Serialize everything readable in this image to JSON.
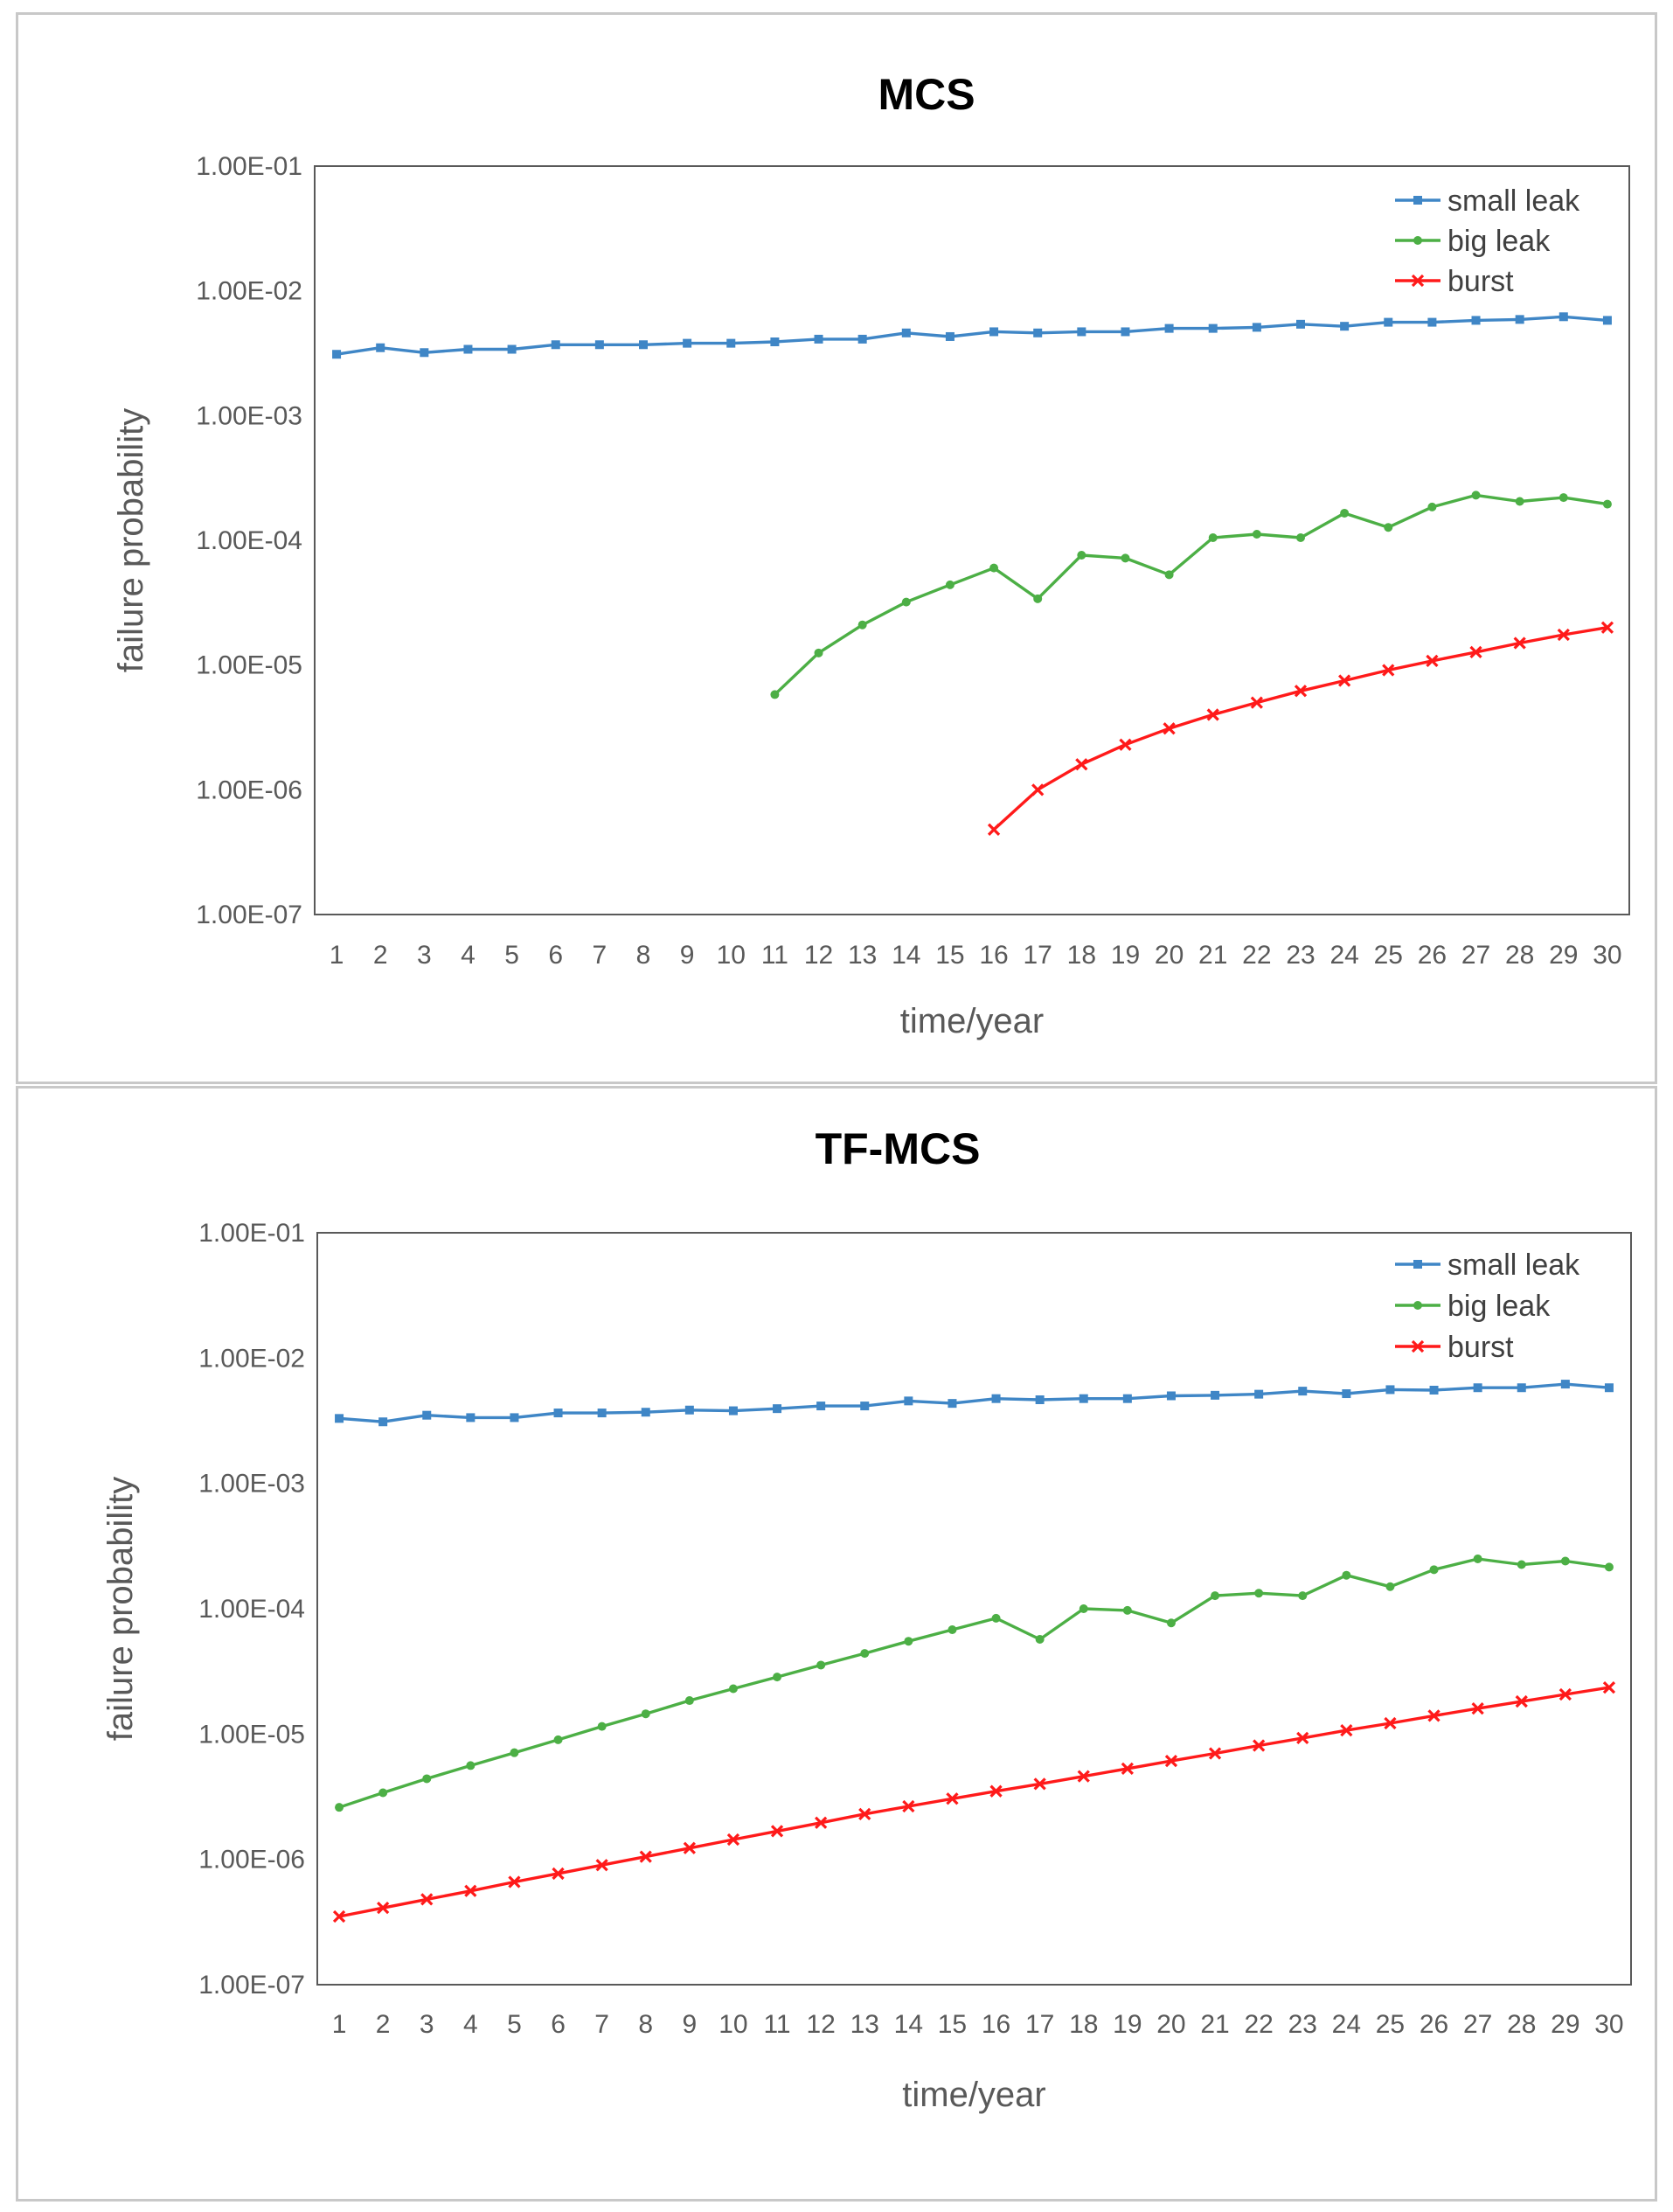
{
  "colors": {
    "small_leak": "#3f86c6",
    "big_leak": "#4caf45",
    "burst": "#ff1a1a",
    "frame": "#595959",
    "text": "#595959"
  },
  "chart_data": [
    {
      "type": "line",
      "title": "MCS",
      "xlabel": "time/year",
      "ylabel": "failure probability",
      "yscale": "log",
      "ylim": [
        1e-07,
        0.1
      ],
      "yticks": [
        "1.00E-07",
        "1.00E-06",
        "1.00E-05",
        "1.00E-04",
        "1.00E-03",
        "1.00E-02",
        "1.00E-01"
      ],
      "categories": [
        "1",
        "2",
        "3",
        "4",
        "5",
        "6",
        "7",
        "8",
        "9",
        "10",
        "11",
        "12",
        "13",
        "14",
        "15",
        "16",
        "17",
        "18",
        "19",
        "20",
        "21",
        "22",
        "23",
        "24",
        "25",
        "26",
        "27",
        "28",
        "29",
        "30"
      ],
      "legend_position": "top-right",
      "series": [
        {
          "name": "small leak",
          "color_key": "small_leak",
          "marker": "square",
          "values": [
            0.0031,
            0.0035,
            0.0032,
            0.0034,
            0.0034,
            0.0037,
            0.0037,
            0.0037,
            0.0038,
            0.0038,
            0.0039,
            0.0041,
            0.0041,
            0.0046,
            0.0043,
            0.0047,
            0.0046,
            0.0047,
            0.0047,
            0.005,
            0.005,
            0.0051,
            0.0054,
            0.0052,
            0.0056,
            0.0056,
            0.0058,
            0.0059,
            0.0062,
            0.0058
          ]
        },
        {
          "name": "big leak",
          "color_key": "big_leak",
          "marker": "circle",
          "values": [
            null,
            null,
            null,
            null,
            null,
            null,
            null,
            null,
            null,
            null,
            5.8e-06,
            1.25e-05,
            2.1e-05,
            3.2e-05,
            4.4e-05,
            6e-05,
            3.4e-05,
            7.6e-05,
            7.2e-05,
            5.3e-05,
            0.000105,
            0.000112,
            0.000105,
            0.000165,
            0.000127,
            0.000185,
            0.00023,
            0.000205,
            0.00022,
            0.000195
          ]
        },
        {
          "name": "burst",
          "color_key": "burst",
          "marker": "x",
          "values": [
            null,
            null,
            null,
            null,
            null,
            null,
            null,
            null,
            null,
            null,
            null,
            null,
            null,
            null,
            null,
            4.8e-07,
            1e-06,
            1.6e-06,
            2.3e-06,
            3.1e-06,
            4e-06,
            5e-06,
            6.2e-06,
            7.5e-06,
            9.1e-06,
            1.08e-05,
            1.27e-05,
            1.5e-05,
            1.75e-05,
            2e-05
          ]
        }
      ]
    },
    {
      "type": "line",
      "title": "TF-MCS",
      "xlabel": "time/year",
      "ylabel": "failure probability",
      "yscale": "log",
      "ylim": [
        1e-07,
        0.1
      ],
      "yticks": [
        "1.00E-07",
        "1.00E-06",
        "1.00E-05",
        "1.00E-04",
        "1.00E-03",
        "1.00E-02",
        "1.00E-01"
      ],
      "categories": [
        "1",
        "2",
        "3",
        "4",
        "5",
        "6",
        "7",
        "8",
        "9",
        "10",
        "11",
        "12",
        "13",
        "14",
        "15",
        "16",
        "17",
        "18",
        "19",
        "20",
        "21",
        "22",
        "23",
        "24",
        "25",
        "26",
        "27",
        "28",
        "29",
        "30"
      ],
      "legend_position": "top-right",
      "series": [
        {
          "name": "small leak",
          "color_key": "small_leak",
          "marker": "square",
          "values": [
            0.0033,
            0.0031,
            0.0035,
            0.00335,
            0.00335,
            0.00365,
            0.00365,
            0.0037,
            0.00385,
            0.0038,
            0.00395,
            0.00415,
            0.00415,
            0.00455,
            0.00435,
            0.00475,
            0.00465,
            0.00475,
            0.00475,
            0.005,
            0.00505,
            0.00515,
            0.00545,
            0.0052,
            0.0056,
            0.00555,
            0.0058,
            0.0058,
            0.0062,
            0.0058
          ]
        },
        {
          "name": "big leak",
          "color_key": "big_leak",
          "marker": "circle",
          "values": [
            2.6e-06,
            3.4e-06,
            4.4e-06,
            5.6e-06,
            7.1e-06,
            9e-06,
            1.15e-05,
            1.45e-05,
            1.85e-05,
            2.3e-05,
            2.85e-05,
            3.55e-05,
            4.4e-05,
            5.5e-05,
            6.8e-05,
            8.4e-05,
            5.7e-05,
            0.0001,
            9.7e-05,
            7.7e-05,
            0.000127,
            0.000133,
            0.000127,
            0.000185,
            0.00015,
            0.000205,
            0.00025,
            0.000225,
            0.00024,
            0.000215
          ]
        },
        {
          "name": "burst",
          "color_key": "burst",
          "marker": "x",
          "values": [
            3.5e-07,
            4.1e-07,
            4.8e-07,
            5.6e-07,
            6.6e-07,
            7.7e-07,
            9e-07,
            1.05e-06,
            1.23e-06,
            1.44e-06,
            1.68e-06,
            1.96e-06,
            2.3e-06,
            2.65e-06,
            3.05e-06,
            3.5e-06,
            4e-06,
            4.6e-06,
            5.3e-06,
            6.1e-06,
            7e-06,
            8.1e-06,
            9.3e-06,
            1.07e-05,
            1.22e-05,
            1.4e-05,
            1.6e-05,
            1.82e-05,
            2.07e-05,
            2.35e-05
          ]
        }
      ]
    }
  ]
}
